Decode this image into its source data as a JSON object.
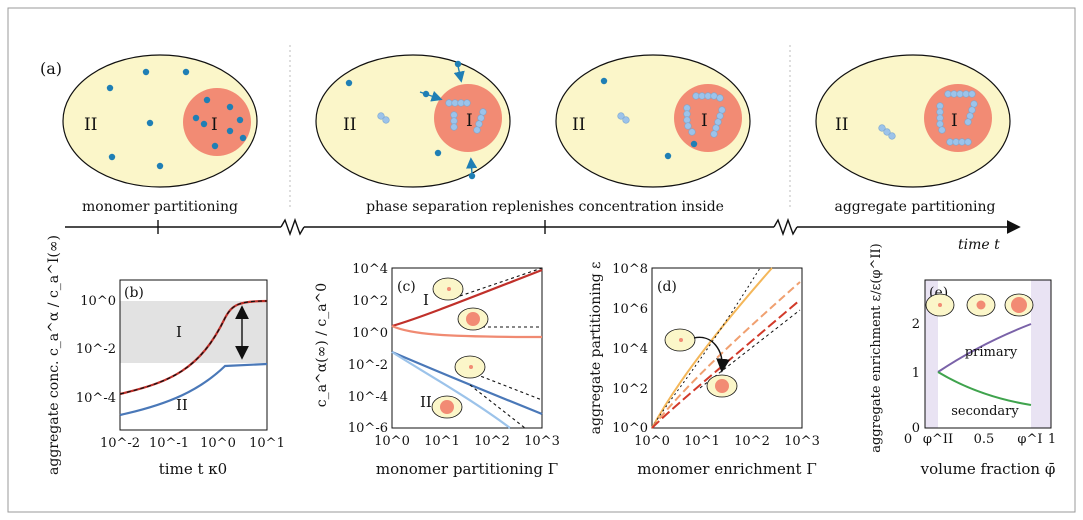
{
  "panel_a": {
    "label": "(a)",
    "region_outer": "II",
    "region_inner": "I",
    "stage_labels": [
      "monomer partitioning",
      "phase separation replenishes concentration inside",
      "aggregate partitioning"
    ],
    "time_axis_label": "time t"
  },
  "panel_b": {
    "label": "(b)",
    "xlabel": "time t κ0",
    "ylabel": "aggregate conc. c_a^α / c_a^I(∞)",
    "curve_labels": [
      "I",
      "II"
    ],
    "x_ticks": [
      "10^-2",
      "10^-1",
      "10^0",
      "10^1"
    ],
    "y_ticks": [
      "10^0",
      "10^-2",
      "10^-4"
    ]
  },
  "panel_c": {
    "label": "(c)",
    "xlabel": "monomer partitioning Γ",
    "ylabel": "c_a^α(∞) / c_a^0",
    "curve_labels": [
      "I",
      "II"
    ],
    "x_ticks": [
      "10^0",
      "10^1",
      "10^2",
      "10^3"
    ],
    "y_ticks": [
      "10^4",
      "10^2",
      "10^0",
      "10^-2",
      "10^-4",
      "10^-6"
    ]
  },
  "panel_d": {
    "label": "(d)",
    "xlabel": "monomer enrichment Γ",
    "ylabel": "aggregate partitioning ε",
    "x_ticks": [
      "10^0",
      "10^1",
      "10^2",
      "10^3"
    ],
    "y_ticks": [
      "10^8",
      "10^6",
      "10^4",
      "10^2",
      "10^0"
    ]
  },
  "panel_e": {
    "label": "(e)",
    "xlabel": "volume fraction φ̄",
    "ylabel": "aggregate enrichment ε/ε(φ^II)",
    "curve_labels": [
      "primary",
      "secondary"
    ],
    "x_ticks": [
      "0",
      "φ^II",
      "0.5",
      "φ^I",
      "1"
    ],
    "y_ticks": [
      "0",
      "1",
      "2"
    ]
  },
  "colors": {
    "dilute_phase": "#fbf6c9",
    "dense_phase": "#f28b74",
    "monomer": "#1f7fb5",
    "aggregate": "#9cc3ea",
    "curve_I": "#c0302a",
    "curve_II": "#4a78b8",
    "primary": "#7a62a8",
    "secondary": "#3fa34d",
    "gray_band": "#e2e2e2",
    "purple_band": "#e9e3f3"
  }
}
